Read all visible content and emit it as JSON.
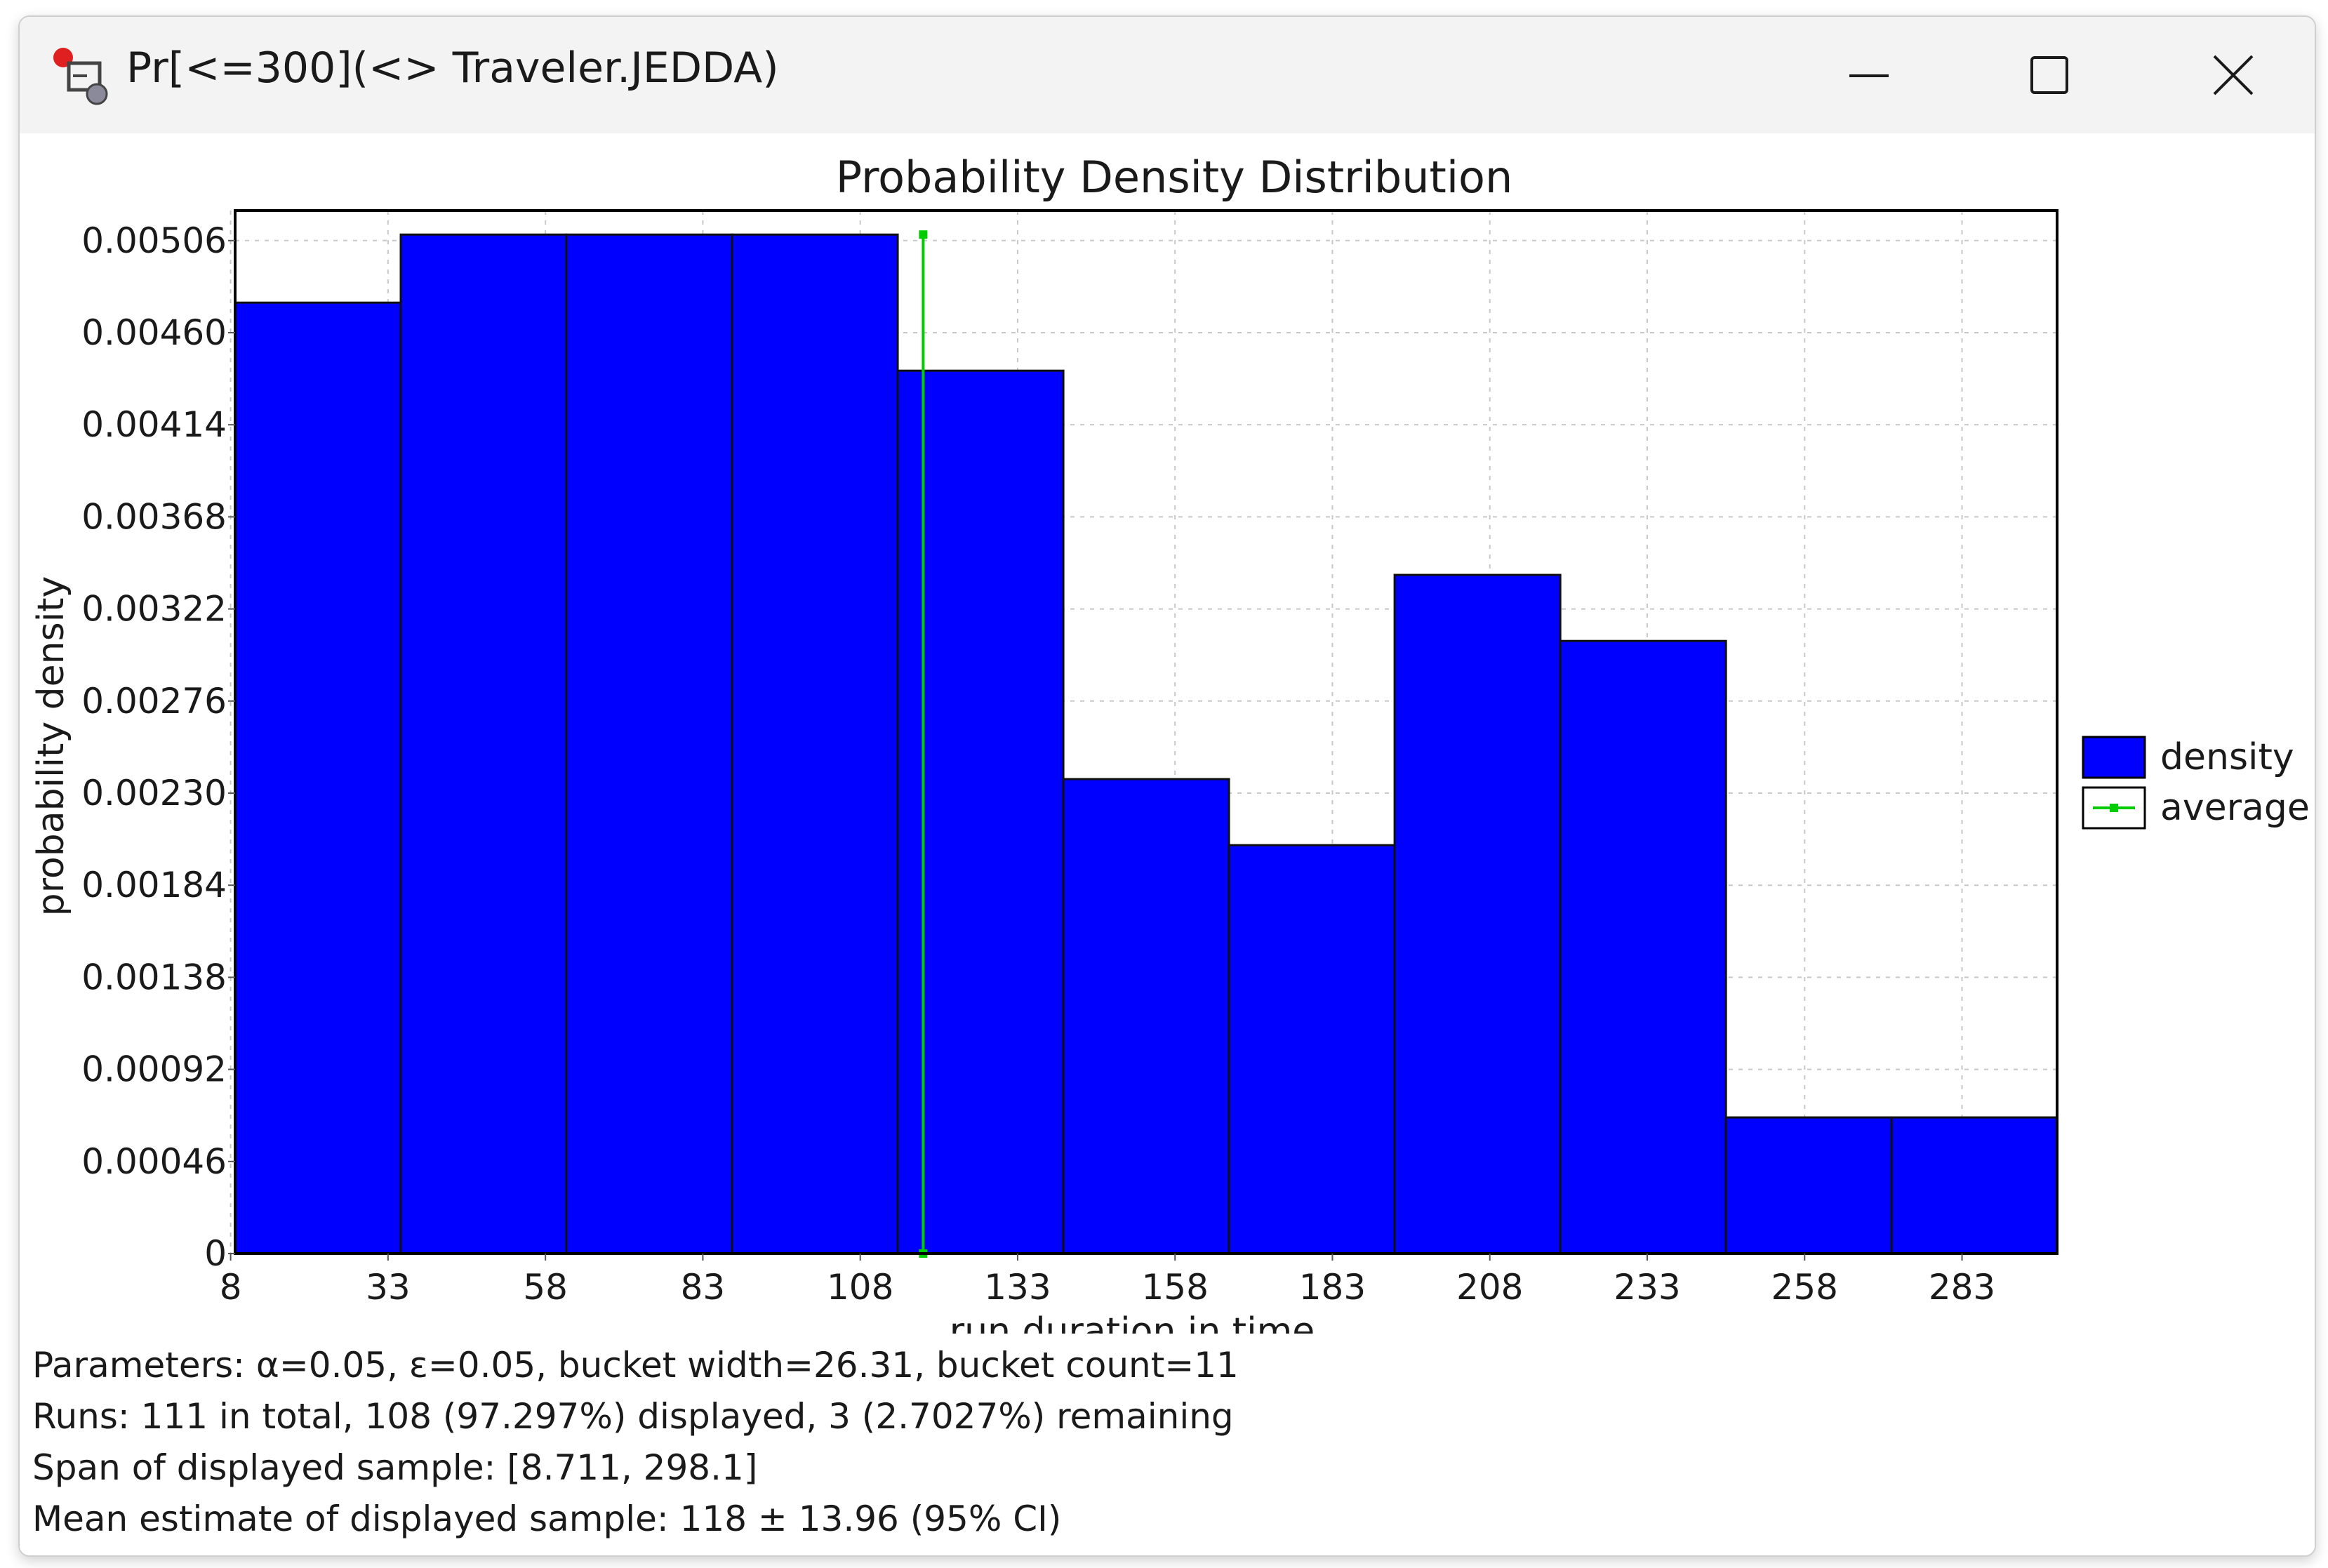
{
  "window": {
    "title": "Pr[<=300](<> Traveler.JEDDA)"
  },
  "colors": {
    "bar_fill": "#0000ff",
    "bar_edge": "#101010",
    "average_line": "#00cc00",
    "grid": "#c8c8c8"
  },
  "chart_data": {
    "type": "bar",
    "title": "Probability Density Distribution",
    "xlabel": "run duration in time",
    "ylabel": "probability density",
    "x_tick_labels": [
      "8",
      "33",
      "58",
      "83",
      "108",
      "133",
      "158",
      "183",
      "208",
      "233",
      "258",
      "283"
    ],
    "y_tick_labels": [
      "0",
      "0.00046",
      "0.00092",
      "0.00138",
      "0.00184",
      "0.00230",
      "0.00276",
      "0.00322",
      "0.00368",
      "0.00414",
      "0.00460",
      "0.00506"
    ],
    "y_ticks": [
      0,
      0.00046,
      0.00092,
      0.00138,
      0.00184,
      0.0023,
      0.00276,
      0.00322,
      0.00368,
      0.00414,
      0.0046,
      0.00506
    ],
    "xlim": [
      8.711,
      298.1
    ],
    "ylim": [
      0,
      0.00521
    ],
    "bucket_start": 8.711,
    "bucket_width": 26.31,
    "series": [
      {
        "name": "density",
        "values": [
          0.00475,
          0.00509,
          0.00509,
          0.00509,
          0.00441,
          0.00237,
          0.00204,
          0.00339,
          0.00306,
          0.00068,
          0.00068
        ]
      }
    ],
    "average": {
      "name": "average",
      "x": 118,
      "y_range": [
        0,
        0.00509
      ]
    },
    "legend": {
      "position": "right",
      "entries": [
        "density",
        "average"
      ]
    },
    "grid": true
  },
  "stats": {
    "parameters": "Parameters: α=0.05, ε=0.05, bucket width=26.31, bucket count=11",
    "runs": "Runs: 111 in total, 108 (97.297%) displayed, 3 (2.7027%) remaining",
    "span": "Span of displayed sample: [8.711, 298.1]",
    "mean": "Mean estimate of displayed sample: 118 ± 13.96 (95% CI)"
  }
}
